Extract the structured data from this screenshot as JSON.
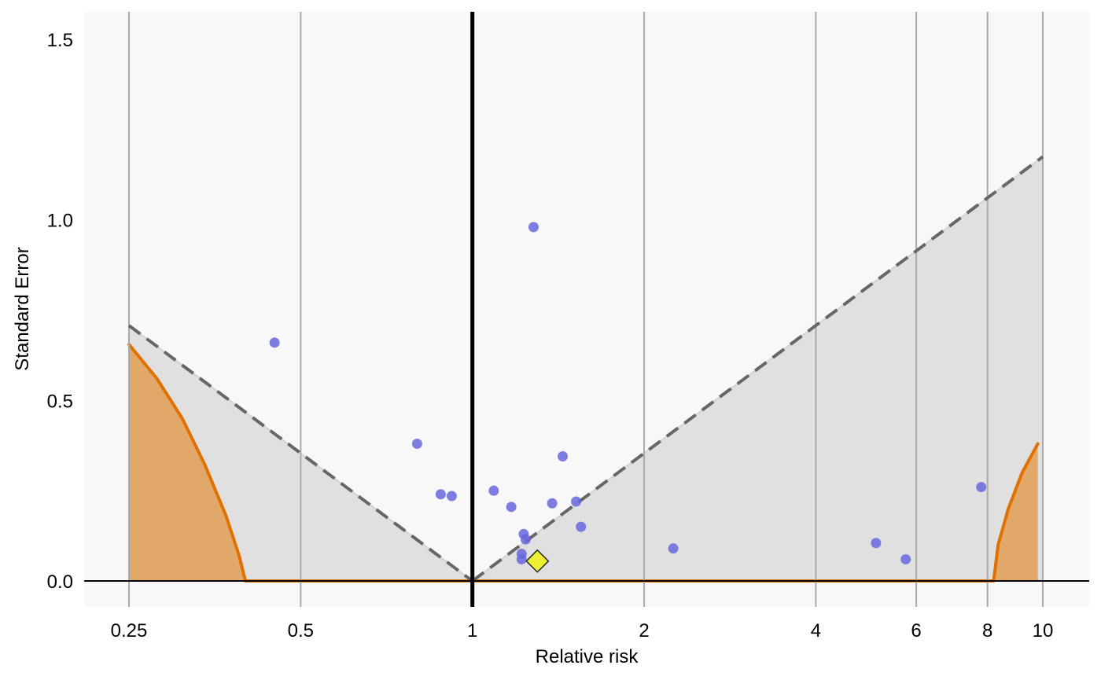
{
  "chart_data": {
    "type": "scatter",
    "title": "",
    "xlabel": "Relative risk",
    "ylabel": "Standard Error",
    "x_scale": "log",
    "xlim": [
      0.25,
      10
    ],
    "ylim": [
      0,
      1.5
    ],
    "x_ticks": [
      0.25,
      0.5,
      1,
      2,
      4,
      6,
      8,
      10
    ],
    "x_tick_labels": [
      "0.25",
      "0.5",
      "1",
      "2",
      "4",
      "6",
      "8",
      "10"
    ],
    "y_ticks": [
      0,
      0.5,
      1,
      1.5
    ],
    "y_tick_labels": [
      "0.0",
      "0.5",
      "1.0",
      "1.5"
    ],
    "vertical_gridlines": true,
    "reference_line_x": 1,
    "funnel_dashed_line_slope": 1.96,
    "colors": {
      "points": "#6666dd",
      "summary": "#eeee33",
      "funnel_fill": "#e0e0e0",
      "panel_bg": "#f8f8f8",
      "significance_fill": "#e2a86a",
      "significance_line": "#e07000",
      "dashed_line": "#666666",
      "gridline": "#aaaaaa"
    },
    "points": [
      {
        "x": 0.45,
        "y": 0.66
      },
      {
        "x": 0.8,
        "y": 0.38
      },
      {
        "x": 0.88,
        "y": 0.24
      },
      {
        "x": 0.92,
        "y": 0.235
      },
      {
        "x": 1.09,
        "y": 0.25
      },
      {
        "x": 1.17,
        "y": 0.205
      },
      {
        "x": 1.22,
        "y": 0.06
      },
      {
        "x": 1.22,
        "y": 0.075
      },
      {
        "x": 1.23,
        "y": 0.13
      },
      {
        "x": 1.24,
        "y": 0.115
      },
      {
        "x": 1.28,
        "y": 0.98
      },
      {
        "x": 1.38,
        "y": 0.215
      },
      {
        "x": 1.44,
        "y": 0.345
      },
      {
        "x": 1.52,
        "y": 0.22
      },
      {
        "x": 1.55,
        "y": 0.15
      },
      {
        "x": 2.25,
        "y": 0.09
      },
      {
        "x": 5.1,
        "y": 0.105
      },
      {
        "x": 5.75,
        "y": 0.06
      },
      {
        "x": 7.8,
        "y": 0.26
      }
    ],
    "summary_estimate": {
      "x": 1.3,
      "y": 0.055
    },
    "significance_contour_left": [
      {
        "x": 0.25,
        "y": 0.655
      },
      {
        "x": 0.28,
        "y": 0.56
      },
      {
        "x": 0.31,
        "y": 0.45
      },
      {
        "x": 0.34,
        "y": 0.32
      },
      {
        "x": 0.37,
        "y": 0.18
      },
      {
        "x": 0.39,
        "y": 0.07
      },
      {
        "x": 0.4,
        "y": 0.0
      }
    ],
    "significance_contour_right": [
      {
        "x": 8.2,
        "y": 0.0
      },
      {
        "x": 8.35,
        "y": 0.1
      },
      {
        "x": 8.7,
        "y": 0.2
      },
      {
        "x": 9.2,
        "y": 0.3
      },
      {
        "x": 9.8,
        "y": 0.38
      }
    ]
  }
}
